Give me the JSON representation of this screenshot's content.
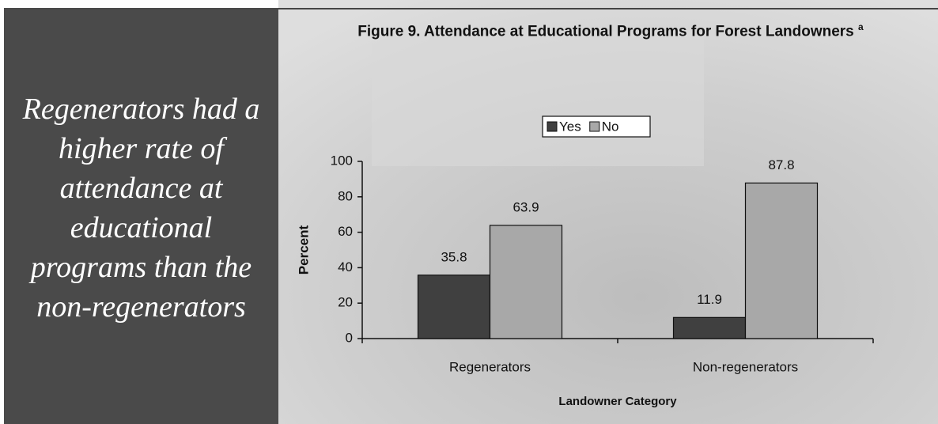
{
  "aside": {
    "text": "Regenerators had a higher rate of attendance at educational programs than the non-regenerators"
  },
  "chart_data": {
    "type": "bar",
    "title": "Figure 9.  Attendance at Educational Programs for Forest Landowners",
    "title_note": "a",
    "x_label": "Landowner Category",
    "y_label": "Percent",
    "categories": [
      "Regenerators",
      "Non-regenerators"
    ],
    "series": [
      {
        "name": "Yes",
        "color": "#404040",
        "values": [
          35.8,
          11.9
        ]
      },
      {
        "name": "No",
        "color": "#a8a8a8",
        "values": [
          63.9,
          87.8
        ]
      }
    ],
    "ylim": [
      0,
      100
    ],
    "yticks": [
      0,
      20,
      40,
      60,
      80,
      100
    ],
    "legend": "top"
  }
}
